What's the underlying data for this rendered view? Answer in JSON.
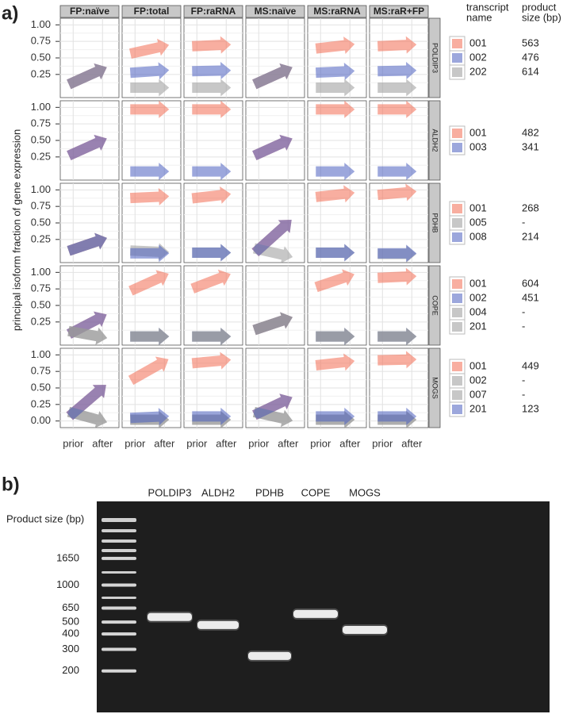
{
  "chart_data": [
    {
      "type": "arrow",
      "label": "a)",
      "y_label": "principal isoform fraction of gene expression",
      "columns": [
        "FP:naïve",
        "FP:total",
        "FP:raRNA",
        "MS:naïve",
        "MS:raRNA",
        "MS:raR+FP"
      ],
      "x_categories": [
        "prior",
        "after"
      ],
      "ylim": [
        -0.1,
        1.1
      ],
      "legend_headers": [
        [
          "transcript",
          "name"
        ],
        [
          "product",
          "size (bp)"
        ]
      ],
      "rows": [
        {
          "name": "POLDIP3",
          "yticks": [
            0.25,
            {
              "value": 0.5,
              "label": "0.50"
            },
            0.75,
            {
              "value": 1,
              "label": "1.00"
            }
          ],
          "series": [
            {
              "name": "001",
              "color": "#f26b52",
              "size": 563,
              "values": [
                [
                  0.13,
                  0.33
                ],
                [
                  0.58,
                  0.68
                ],
                [
                  0.68,
                  0.7
                ],
                [
                  0.13,
                  0.33
                ],
                [
                  0.65,
                  0.7
                ],
                [
                  0.68,
                  0.7
                ]
              ]
            },
            {
              "name": "002",
              "color": "#4b5fc0",
              "size": 476,
              "values": [
                [
                  0.13,
                  0.33
                ],
                [
                  0.28,
                  0.31
                ],
                [
                  0.3,
                  0.31
                ],
                [
                  0.13,
                  0.33
                ],
                [
                  0.28,
                  0.3
                ],
                [
                  0.3,
                  0.31
                ]
              ]
            },
            {
              "name": "202",
              "color": "#999999",
              "size": 614,
              "values": [
                [
                  0.13,
                  0.33
                ],
                [
                  0.05,
                  0.05
                ],
                [
                  0.05,
                  0.05
                ],
                [
                  0.13,
                  0.33
                ],
                [
                  0.05,
                  0.05
                ],
                [
                  0.05,
                  0.05
                ]
              ]
            }
          ]
        },
        {
          "name": "ALDH2",
          "yticks": [
            0.25,
            {
              "value": 0.5,
              "label": "0.50"
            },
            0.75,
            {
              "value": 1,
              "label": "1.00"
            }
          ],
          "series": [
            {
              "name": "001",
              "color": "#f26b52",
              "size": 482,
              "values": [
                [
                  0.3,
                  0.5
                ],
                [
                  0.97,
                  0.97
                ],
                [
                  0.97,
                  0.97
                ],
                [
                  0.3,
                  0.5
                ],
                [
                  0.97,
                  0.97
                ],
                [
                  0.97,
                  0.97
                ]
              ]
            },
            {
              "name": "003",
              "color": "#4b5fc0",
              "size": 341,
              "values": [
                [
                  0.3,
                  0.5
                ],
                [
                  0.03,
                  0.03
                ],
                [
                  0.03,
                  0.03
                ],
                [
                  0.3,
                  0.5
                ],
                [
                  0.03,
                  0.03
                ],
                [
                  0.03,
                  0.03
                ]
              ]
            }
          ]
        },
        {
          "name": "PDHB",
          "yticks": [
            0.25,
            {
              "value": 0.5,
              "label": "0.50"
            },
            0.75,
            {
              "value": 1,
              "label": "1.00"
            }
          ],
          "series": [
            {
              "name": "001",
              "color": "#f26b52",
              "size": 268,
              "values": [
                [
                  0.1,
                  0.25
                ],
                [
                  0.88,
                  0.9
                ],
                [
                  0.88,
                  0.93
                ],
                [
                  0.1,
                  0.5
                ],
                [
                  0.9,
                  0.95
                ],
                [
                  0.93,
                  0.97
                ]
              ]
            },
            {
              "name": "005",
              "color": "#999999",
              "size": "-",
              "values": [
                [
                  0.1,
                  0.25
                ],
                [
                  0.08,
                  0.06
                ],
                [
                  0.05,
                  0.05
                ],
                [
                  0.1,
                  0
                ],
                [
                  0.05,
                  0.05
                ],
                [
                  0.03,
                  0.03
                ]
              ]
            },
            {
              "name": "008",
              "color": "#4b5fc0",
              "size": 214,
              "values": [
                [
                  0.1,
                  0.25
                ],
                [
                  0.04,
                  0.04
                ],
                [
                  0.05,
                  0.05
                ],
                [
                  0.1,
                  0.5
                ],
                [
                  0.05,
                  0.05
                ],
                [
                  0.04,
                  0.04
                ]
              ]
            }
          ]
        },
        {
          "name": "COPE",
          "yticks": [
            0.25,
            {
              "value": 0.5,
              "label": "0.50"
            },
            0.75,
            {
              "value": 1,
              "label": "1.00"
            }
          ],
          "series": [
            {
              "name": "001",
              "color": "#f26b52",
              "size": 604,
              "values": [
                [
                  0.1,
                  0.33
                ],
                [
                  0.75,
                  0.95
                ],
                [
                  0.78,
                  0.95
                ],
                [
                  0.15,
                  0.3
                ],
                [
                  0.8,
                  0.95
                ],
                [
                  0.92,
                  0.94
                ]
              ]
            },
            {
              "name": "002",
              "color": "#4b5fc0",
              "size": 451,
              "values": [
                [
                  0.1,
                  0.33
                ],
                [
                  0.03,
                  0.03
                ],
                [
                  0.03,
                  0.03
                ],
                [
                  0.15,
                  0.3
                ],
                [
                  0.03,
                  0.03
                ],
                [
                  0.03,
                  0.03
                ]
              ]
            },
            {
              "name": "004",
              "color": "#999999",
              "size": "-",
              "values": [
                [
                  0.1,
                  0.02
                ],
                [
                  0.03,
                  0.03
                ],
                [
                  0.03,
                  0.03
                ],
                [
                  0.15,
                  0.3
                ],
                [
                  0.03,
                  0.03
                ],
                [
                  0.03,
                  0.03
                ]
              ]
            },
            {
              "name": "201",
              "color": "#999999",
              "size": "-",
              "values": [
                [
                  0.1,
                  0.02
                ],
                [
                  0.03,
                  0.03
                ],
                [
                  0.03,
                  0.03
                ],
                [
                  0.15,
                  0.3
                ],
                [
                  0.03,
                  0.03
                ],
                [
                  0.03,
                  0.03
                ]
              ]
            }
          ]
        },
        {
          "name": "MOGS",
          "yticks": [
            {
              "value": 0,
              "label": "0.00"
            },
            0.25,
            {
              "value": 0.5,
              "label": "0.50"
            },
            0.75,
            {
              "value": 1,
              "label": "1.00"
            }
          ],
          "series": [
            {
              "name": "001",
              "color": "#f26b52",
              "size": 449,
              "values": [
                [
                  0.12,
                  0.5
                ],
                [
                  0.65,
                  0.9
                ],
                [
                  0.88,
                  0.92
                ],
                [
                  0.12,
                  0.33
                ],
                [
                  0.85,
                  0.9
                ],
                [
                  0.92,
                  0.93
                ]
              ]
            },
            {
              "name": "002",
              "color": "#999999",
              "size": "-",
              "values": [
                [
                  0.12,
                  0
                ],
                [
                  0.02,
                  0.02
                ],
                [
                  0.02,
                  0.02
                ],
                [
                  0.12,
                  0.02
                ],
                [
                  0.02,
                  0.02
                ],
                [
                  0.02,
                  0.02
                ]
              ]
            },
            {
              "name": "007",
              "color": "#999999",
              "size": "-",
              "values": [
                [
                  0.12,
                  0
                ],
                [
                  0.02,
                  0.02
                ],
                [
                  0.02,
                  0.02
                ],
                [
                  0.12,
                  0.02
                ],
                [
                  0.02,
                  0.02
                ],
                [
                  0.02,
                  0.02
                ]
              ]
            },
            {
              "name": "201",
              "color": "#4b5fc0",
              "size": 123,
              "values": [
                [
                  0.12,
                  0.5
                ],
                [
                  0.05,
                  0.07
                ],
                [
                  0.07,
                  0.07
                ],
                [
                  0.12,
                  0.33
                ],
                [
                  0.07,
                  0.07
                ],
                [
                  0.07,
                  0.07
                ]
              ]
            }
          ]
        }
      ]
    },
    {
      "type": "gel",
      "label": "b)",
      "axis_title": "Product size (bp)",
      "log": true,
      "ylim": [
        92,
        4800
      ],
      "ladder": [
        1650,
        1000,
        650,
        500,
        400,
        300,
        200
      ],
      "lanes": [
        "POLDIP3",
        "ALDH2",
        "PDHB",
        "COPE",
        "MOGS"
      ],
      "values": [
        550,
        473,
        265,
        582,
        432
      ]
    }
  ]
}
